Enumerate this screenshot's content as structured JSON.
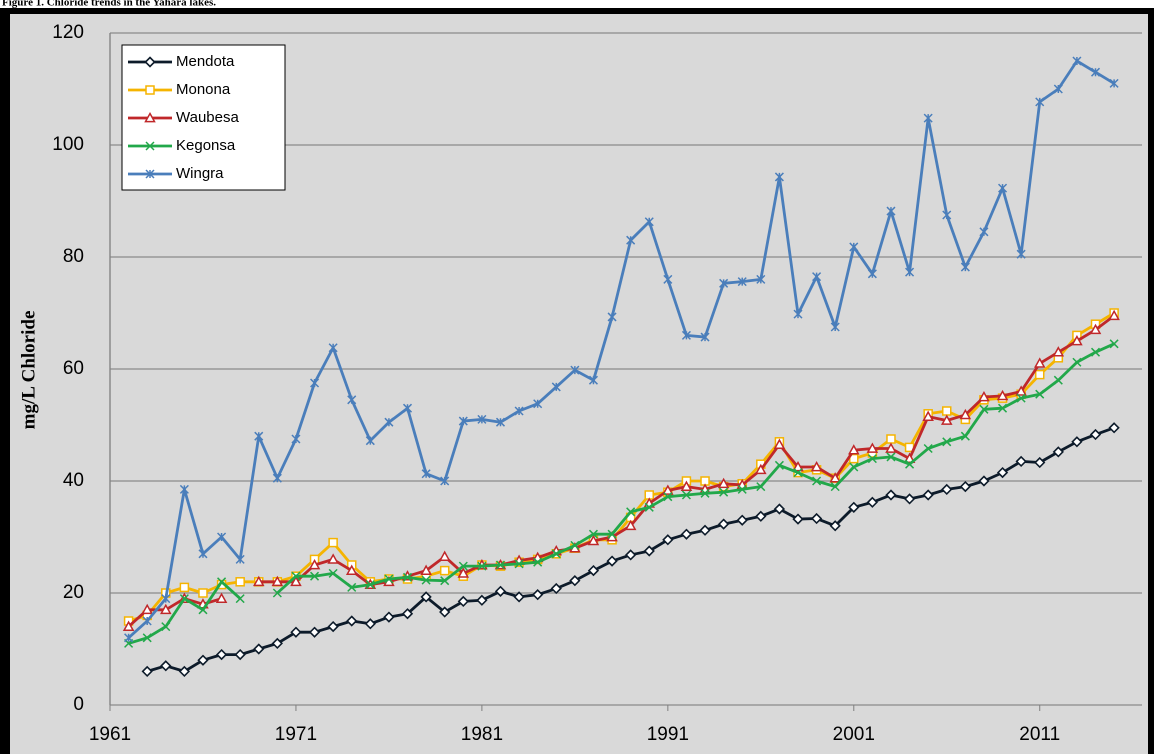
{
  "chart_data": {
    "type": "line",
    "title": "Figure 1. Chloride trends in the Yahara lakes.",
    "y_label": "mg/L Chloride",
    "x": [
      1962,
      1963,
      1964,
      1965,
      1966,
      1967,
      1968,
      1969,
      1970,
      1971,
      1972,
      1973,
      1974,
      1975,
      1976,
      1977,
      1978,
      1979,
      1980,
      1981,
      1982,
      1983,
      1984,
      1985,
      1986,
      1987,
      1988,
      1989,
      1990,
      1991,
      1992,
      1993,
      1994,
      1995,
      1996,
      1997,
      1998,
      1999,
      2000,
      2001,
      2002,
      2003,
      2004,
      2005,
      2006,
      2007,
      2008,
      2009,
      2010,
      2011,
      2012,
      2013,
      2014,
      2015
    ],
    "xlim": [
      1961,
      2016.5
    ],
    "xticks": [
      1961,
      1971,
      1981,
      1991,
      2001,
      2011
    ],
    "ylim": [
      0,
      120
    ],
    "yticks": [
      0,
      20,
      40,
      60,
      80,
      100,
      120
    ],
    "grid": true,
    "legend": "top-left",
    "series": [
      {
        "name": "Mendota",
        "color": "#0d1b2a",
        "marker": "diamond",
        "values": [
          null,
          6,
          7,
          6,
          8,
          9,
          9,
          10,
          11,
          13,
          13,
          14,
          15,
          14.5,
          15.7,
          16.3,
          19.3,
          16.6,
          18.5,
          18.7,
          20.3,
          19.3,
          19.7,
          20.8,
          22.2,
          24,
          25.7,
          26.8,
          27.5,
          29.5,
          30.5,
          31.2,
          32.3,
          33,
          33.7,
          35,
          33.2,
          33.3,
          32,
          35.3,
          36.2,
          37.5,
          36.8,
          37.5,
          38.5,
          39,
          40,
          41.5,
          43.5,
          43.3,
          45.2,
          47,
          48.3,
          49.5
        ]
      },
      {
        "name": "Monona",
        "color": "#f5b400",
        "marker": "square",
        "values": [
          15,
          16,
          20,
          21,
          20,
          21.5,
          22,
          22,
          22,
          23,
          26,
          29,
          25,
          22,
          22.5,
          22.5,
          23,
          24,
          23,
          25,
          24.8,
          25.5,
          26,
          27,
          28,
          29.5,
          29.5,
          33.5,
          37.5,
          38,
          40,
          40,
          39,
          39.5,
          43,
          47,
          41.5,
          42,
          40.5,
          44,
          45,
          47.5,
          46,
          52,
          52.5,
          51,
          54.5,
          54.8,
          55.5,
          59,
          62,
          66,
          68,
          70
        ]
      },
      {
        "name": "Waubesa",
        "color": "#c0282a",
        "marker": "triangle",
        "values": [
          14,
          17,
          17,
          19,
          18,
          19,
          null,
          22,
          22,
          22,
          25,
          26,
          24,
          21.5,
          22,
          23,
          24,
          26.5,
          23.5,
          25,
          25,
          25.8,
          26.3,
          27.5,
          28,
          29.3,
          30,
          32,
          36,
          38.3,
          39,
          38.5,
          39.5,
          39.3,
          42,
          46.5,
          42.5,
          42.5,
          40.5,
          45.5,
          45.8,
          45.8,
          44,
          51.5,
          50.8,
          51.8,
          55,
          55.2,
          56,
          61,
          63,
          65,
          67,
          69.5
        ]
      },
      {
        "name": "Kegonsa",
        "color": "#22a84a",
        "marker": "x",
        "values": [
          11,
          12,
          14,
          19,
          17,
          22,
          19,
          null,
          20,
          23,
          23,
          23.5,
          21,
          21.5,
          22.5,
          22.8,
          22.3,
          22.2,
          24.8,
          24.8,
          25,
          25.2,
          25.5,
          27,
          28.5,
          30.5,
          30.5,
          34.5,
          35.3,
          37.2,
          37.5,
          37.8,
          38,
          38.5,
          39,
          42.8,
          41.5,
          40,
          39,
          42.5,
          44,
          44.3,
          43,
          45.8,
          47,
          48,
          52.8,
          53,
          54.8,
          55.5,
          58,
          61.2,
          63,
          64.5
        ]
      },
      {
        "name": "Wingra",
        "color": "#4a7ebb",
        "marker": "star",
        "values": [
          12,
          15,
          19,
          38.5,
          27,
          30,
          26,
          48,
          40.5,
          47.5,
          57.5,
          63.8,
          54.5,
          47.2,
          50.5,
          53,
          41.3,
          40,
          50.7,
          51,
          50.5,
          52.5,
          53.8,
          56.8,
          59.8,
          58,
          69.3,
          83,
          86.3,
          76,
          66,
          65.7,
          75.3,
          75.6,
          76,
          94.3,
          69.8,
          76.5,
          67.5,
          81.8,
          77,
          88.2,
          77.3,
          104.8,
          87.5,
          78.2,
          84.5,
          92.3,
          80.5,
          107.7,
          110,
          115,
          113,
          111
        ]
      }
    ]
  }
}
